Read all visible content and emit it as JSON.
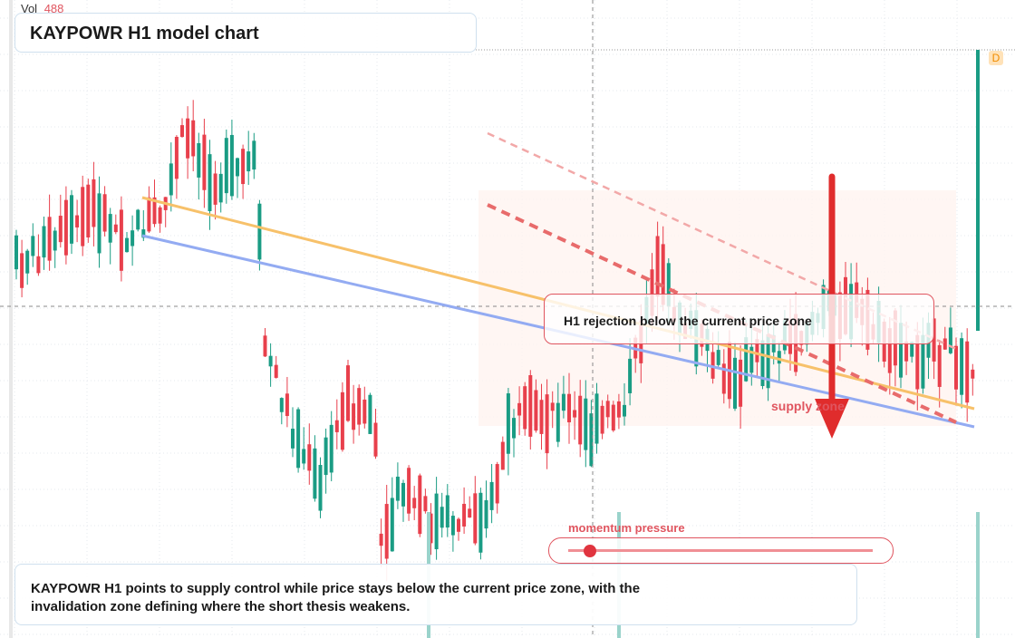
{
  "header": {
    "vol_label": "Vol",
    "vol_value": 488,
    "title": "KAYPOWR H1 model chart",
    "badge": "D"
  },
  "annotations": {
    "rejection": "H1 rejection below the current price zone",
    "zone_label": "supply zone",
    "momentum_label": "momentum pressure"
  },
  "footer": {
    "text": "KAYPOWR H1 points to supply control while price stays below the current price zone, with the invalidation zone defining where the short thesis weakens."
  }
}
